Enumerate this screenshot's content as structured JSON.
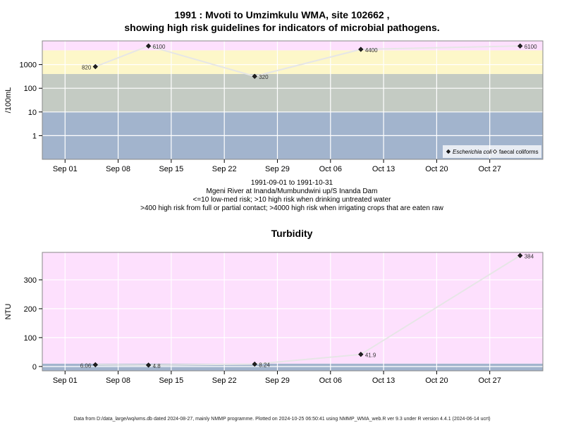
{
  "chart_data": [
    {
      "type": "line",
      "title_lines": [
        "1991 : Mvoti to Umzimkulu WMA, site 102662 ,",
        "showing high risk guidelines for indicators of microbial pathogens."
      ],
      "ylabel": "/100mL",
      "yscale": "log",
      "ylim": [
        0.1,
        10000
      ],
      "yticks": [
        1,
        10,
        100,
        1000
      ],
      "ytick_labels": [
        "1",
        "10",
        "100",
        "1000"
      ],
      "xlim": [
        "1991-08-29",
        "1991-11-03"
      ],
      "xticks": [
        "1991-09-01",
        "1991-09-08",
        "1991-09-15",
        "1991-09-22",
        "1991-09-29",
        "1991-10-06",
        "1991-10-13",
        "1991-10-20",
        "1991-10-27"
      ],
      "xtick_labels": [
        "Sep 01",
        "Sep 08",
        "Sep 15",
        "Sep 22",
        "Sep 29",
        "Oct 06",
        "Oct 13",
        "Oct 20",
        "Oct 27"
      ],
      "bands": [
        {
          "from": 0.1,
          "to": 10,
          "color": "#a2b4cd"
        },
        {
          "from": 10,
          "to": 400,
          "color": "#c4cbc3"
        },
        {
          "from": 400,
          "to": 4000,
          "color": "#fdf7c9"
        },
        {
          "from": 4000,
          "to": 10000,
          "color": "#fde0fd"
        }
      ],
      "series": [
        {
          "name": "Escherichia coli",
          "dates": [
            "1991-09-05",
            "1991-09-12",
            "1991-09-26",
            "1991-10-10",
            "1991-10-31"
          ],
          "values": [
            820,
            6100,
            320,
            4400,
            6100
          ],
          "labels": [
            "820",
            "6100",
            "320",
            "4400",
            "6100"
          ],
          "label_side": [
            "left",
            "right",
            "right",
            "right",
            "right"
          ]
        }
      ],
      "legend": {
        "placement": "bottom-right",
        "entries": [
          {
            "label": "Escherichia coli",
            "marker": "filled-diamond",
            "italic": true
          },
          {
            "label": "faecal coliforms",
            "marker": "open-diamond",
            "italic": false
          }
        ]
      },
      "caption_lines": [
        "1991-09-01 to 1991-10-31",
        "Mgeni River at Inanda/Mumbundwini up/S Inanda Dam",
        "<=10 low-med risk; >10 high risk when drinking untreated water",
        ">400 high risk from full or partial contact; >4000 high risk when irrigating crops that are eaten raw"
      ]
    },
    {
      "type": "line",
      "title": "Turbidity",
      "ylabel": "NTU",
      "yscale": "linear",
      "ylim": [
        -15,
        395
      ],
      "yticks": [
        0,
        100,
        200,
        300
      ],
      "ytick_labels": [
        "0",
        "100",
        "200",
        "300"
      ],
      "xlim": [
        "1991-08-29",
        "1991-11-03"
      ],
      "xticks": [
        "1991-09-01",
        "1991-09-08",
        "1991-09-15",
        "1991-09-22",
        "1991-09-29",
        "1991-10-06",
        "1991-10-13",
        "1991-10-20",
        "1991-10-27"
      ],
      "xtick_labels": [
        "Sep 01",
        "Sep 08",
        "Sep 15",
        "Sep 22",
        "Sep 29",
        "Oct 06",
        "Oct 13",
        "Oct 20",
        "Oct 27"
      ],
      "bands": [
        {
          "from": -15,
          "to": 10,
          "color": "#a2b4cd"
        },
        {
          "from": 10,
          "to": 395,
          "color": "#fde0fd"
        }
      ],
      "series": [
        {
          "name": "",
          "dates": [
            "1991-09-05",
            "1991-09-12",
            "1991-09-26",
            "1991-10-10",
            "1991-10-31"
          ],
          "values": [
            6.06,
            4.8,
            8.24,
            41.9,
            384
          ],
          "labels": [
            "6.06",
            "4.8",
            "8.24",
            "41.9",
            "384"
          ],
          "label_side": [
            "left",
            "right",
            "right",
            "right",
            "right"
          ]
        }
      ]
    }
  ],
  "footer": "Data from D:/data_large/wq/wms.db dated 2024-08-27, mainly NMMP programme. Plotted on 2024-10-25 06:50:41 using NMMP_WMA_web.R ver 9.3 under R version 4.4.1 (2024-06-14 ucrt)"
}
